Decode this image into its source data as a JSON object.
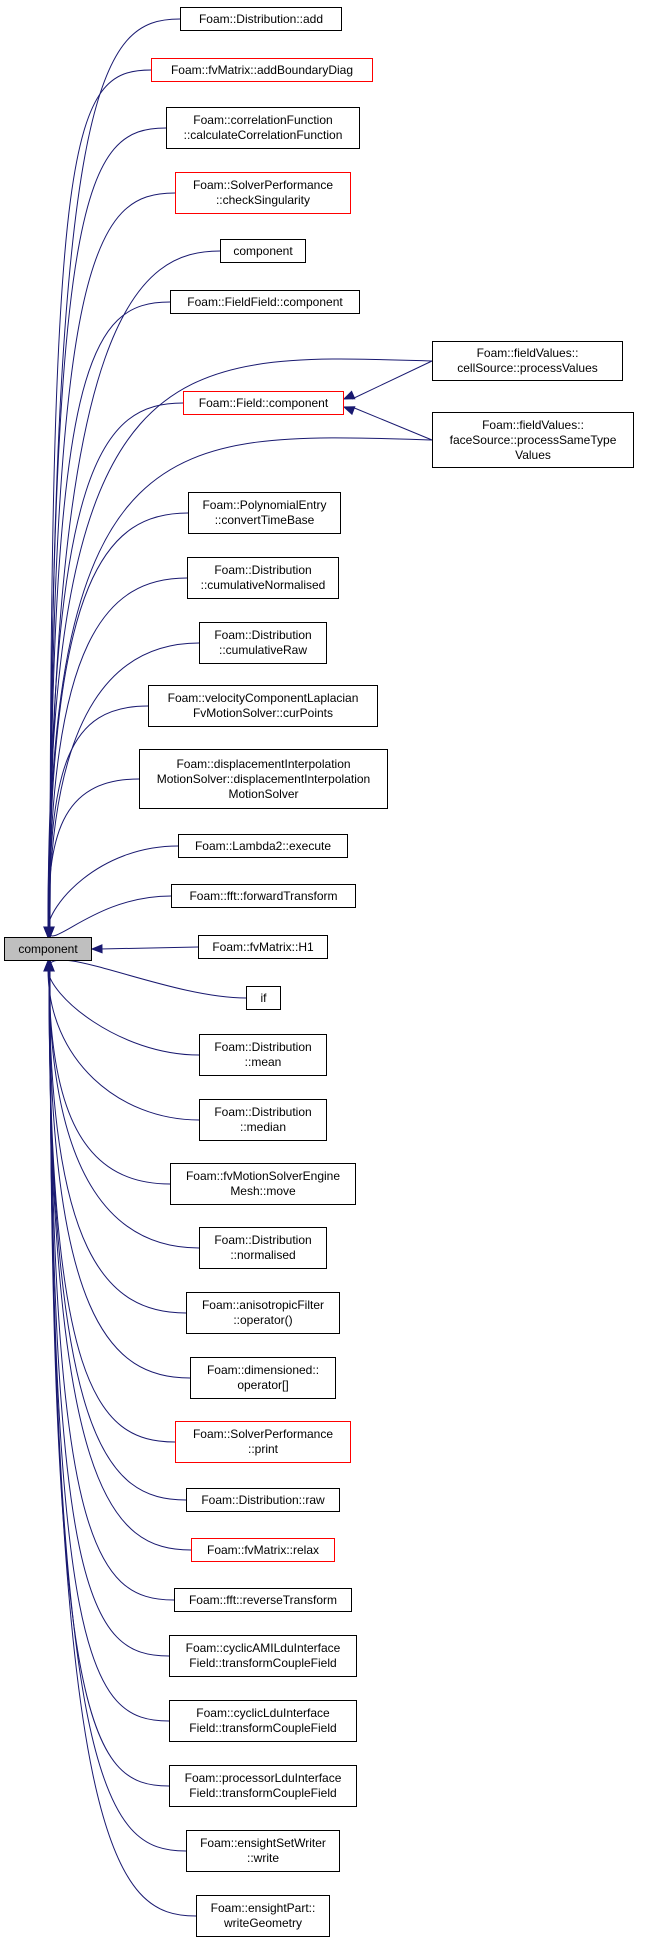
{
  "colors": {
    "edge": "#191970",
    "root_fill": "#bfbfbf",
    "normal_border": "#000000",
    "highlight_border": "#ff0000"
  },
  "root": {
    "label": "component"
  },
  "callers": [
    {
      "id": "n1",
      "lines": [
        "Foam::Distribution::add"
      ],
      "red": false
    },
    {
      "id": "n2",
      "lines": [
        "Foam::fvMatrix::addBoundaryDiag"
      ],
      "red": true
    },
    {
      "id": "n3",
      "lines": [
        "Foam::correlationFunction",
        "::calculateCorrelationFunction"
      ],
      "red": false
    },
    {
      "id": "n4",
      "lines": [
        "Foam::SolverPerformance",
        "::checkSingularity"
      ],
      "red": true
    },
    {
      "id": "n5",
      "lines": [
        "component"
      ],
      "red": false
    },
    {
      "id": "n6",
      "lines": [
        "Foam::FieldField::component"
      ],
      "red": false
    },
    {
      "id": "n7",
      "lines": [
        "Foam::Field::component"
      ],
      "red": true
    },
    {
      "id": "n8",
      "lines": [
        "Foam::PolynomialEntry",
        "::convertTimeBase"
      ],
      "red": false
    },
    {
      "id": "n9",
      "lines": [
        "Foam::Distribution",
        "::cumulativeNormalised"
      ],
      "red": false
    },
    {
      "id": "n10",
      "lines": [
        "Foam::Distribution",
        "::cumulativeRaw"
      ],
      "red": false
    },
    {
      "id": "n11",
      "lines": [
        "Foam::velocityComponentLaplacian",
        "FvMotionSolver::curPoints"
      ],
      "red": false
    },
    {
      "id": "n12",
      "lines": [
        "Foam::displacementInterpolation",
        "MotionSolver::displacementInterpolation",
        "MotionSolver"
      ],
      "red": false
    },
    {
      "id": "n13",
      "lines": [
        "Foam::Lambda2::execute"
      ],
      "red": false
    },
    {
      "id": "n14",
      "lines": [
        "Foam::fft::forwardTransform"
      ],
      "red": false
    },
    {
      "id": "n15",
      "lines": [
        "Foam::fvMatrix::H1"
      ],
      "red": false
    },
    {
      "id": "n16",
      "lines": [
        "if"
      ],
      "red": false
    },
    {
      "id": "n17",
      "lines": [
        "Foam::Distribution",
        "::mean"
      ],
      "red": false
    },
    {
      "id": "n18",
      "lines": [
        "Foam::Distribution",
        "::median"
      ],
      "red": false
    },
    {
      "id": "n19",
      "lines": [
        "Foam::fvMotionSolverEngine",
        "Mesh::move"
      ],
      "red": false
    },
    {
      "id": "n20",
      "lines": [
        "Foam::Distribution",
        "::normalised"
      ],
      "red": false
    },
    {
      "id": "n21",
      "lines": [
        "Foam::anisotropicFilter",
        "::operator()"
      ],
      "red": false
    },
    {
      "id": "n22",
      "lines": [
        "Foam::dimensioned::",
        "operator[]"
      ],
      "red": false
    },
    {
      "id": "n23",
      "lines": [
        "Foam::SolverPerformance",
        "::print"
      ],
      "red": true
    },
    {
      "id": "n24",
      "lines": [
        "Foam::Distribution::raw"
      ],
      "red": false
    },
    {
      "id": "n25",
      "lines": [
        "Foam::fvMatrix::relax"
      ],
      "red": true
    },
    {
      "id": "n26",
      "lines": [
        "Foam::fft::reverseTransform"
      ],
      "red": false
    },
    {
      "id": "n27",
      "lines": [
        "Foam::cyclicAMILduInterface",
        "Field::transformCoupleField"
      ],
      "red": false
    },
    {
      "id": "n28",
      "lines": [
        "Foam::cyclicLduInterface",
        "Field::transformCoupleField"
      ],
      "red": false
    },
    {
      "id": "n29",
      "lines": [
        "Foam::processorLduInterface",
        "Field::transformCoupleField"
      ],
      "red": false
    },
    {
      "id": "n30",
      "lines": [
        "Foam::ensightSetWriter",
        "::write"
      ],
      "red": false
    },
    {
      "id": "n31",
      "lines": [
        "Foam::ensightPart::",
        "writeGeometry"
      ],
      "red": false
    }
  ],
  "field_component_callers": [
    {
      "id": "n32",
      "lines": [
        "Foam::fieldValues::",
        "cellSource::processValues"
      ],
      "red": false
    },
    {
      "id": "n33",
      "lines": [
        "Foam::fieldValues::",
        "faceSource::processSameType",
        "Values"
      ],
      "red": false
    }
  ]
}
